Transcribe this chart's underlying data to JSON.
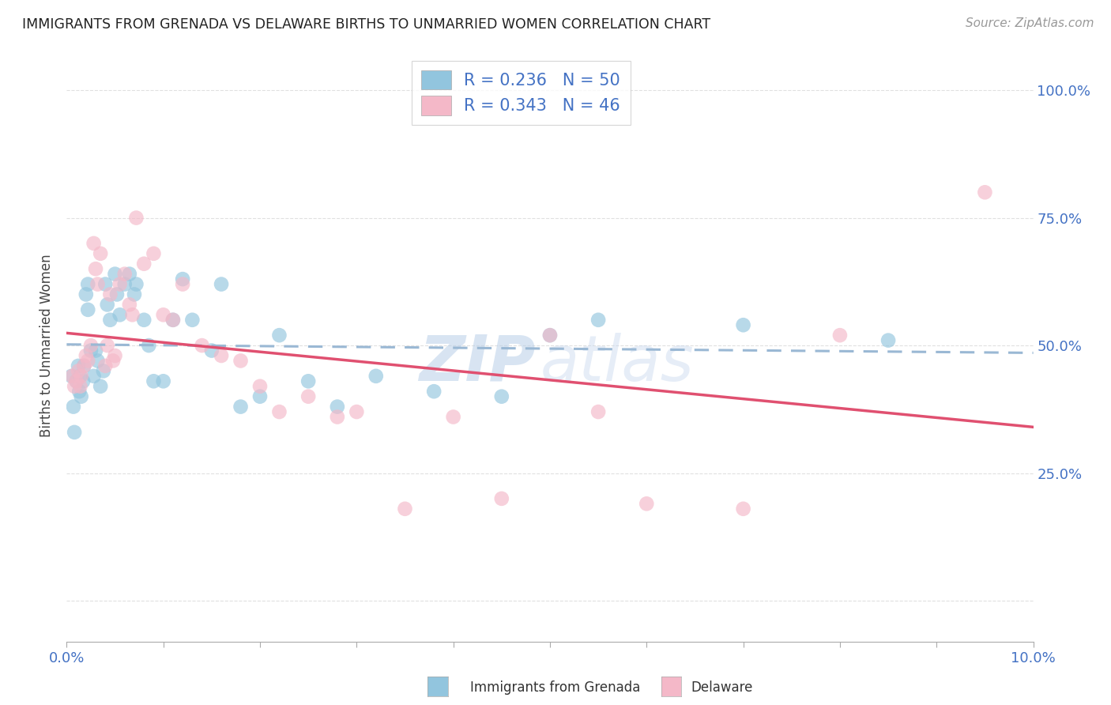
{
  "title": "IMMIGRANTS FROM GRENADA VS DELAWARE BIRTHS TO UNMARRIED WOMEN CORRELATION CHART",
  "source": "Source: ZipAtlas.com",
  "ylabel": "Births to Unmarried Women",
  "xlim": [
    0.0,
    10.0
  ],
  "ylim": [
    -8.0,
    108.0
  ],
  "yticks": [
    0,
    25,
    50,
    75,
    100
  ],
  "ytick_labels": [
    "",
    "25.0%",
    "50.0%",
    "75.0%",
    "100.0%"
  ],
  "xtick_labels_shown": [
    "0.0%",
    "10.0%"
  ],
  "legend_label1": "Immigrants from Grenada",
  "legend_label2": "Delaware",
  "color_blue": "#92c5de",
  "color_pink": "#f4b8c8",
  "color_blue_line": "#4472c4",
  "color_pink_line": "#e05070",
  "color_blue_dashed": "#b0c8e0",
  "title_color": "#222222",
  "source_color": "#999999",
  "axis_color": "#4472c4",
  "grid_color": "#e0e0e0",
  "blue_scatter_x": [
    0.05,
    0.07,
    0.08,
    0.1,
    0.12,
    0.13,
    0.14,
    0.15,
    0.17,
    0.18,
    0.2,
    0.22,
    0.22,
    0.25,
    0.28,
    0.3,
    0.32,
    0.35,
    0.38,
    0.4,
    0.42,
    0.45,
    0.5,
    0.52,
    0.55,
    0.6,
    0.65,
    0.7,
    0.72,
    0.8,
    0.85,
    0.9,
    1.0,
    1.1,
    1.2,
    1.3,
    1.5,
    1.6,
    1.8,
    2.0,
    2.2,
    2.5,
    2.8,
    3.2,
    3.8,
    4.5,
    5.0,
    5.5,
    7.0,
    8.5
  ],
  "blue_scatter_y": [
    44,
    38,
    33,
    43,
    46,
    41,
    44,
    40,
    43,
    46,
    60,
    62,
    57,
    49,
    44,
    49,
    47,
    42,
    45,
    62,
    58,
    55,
    64,
    60,
    56,
    62,
    64,
    60,
    62,
    55,
    50,
    43,
    43,
    55,
    63,
    55,
    49,
    62,
    38,
    40,
    52,
    43,
    38,
    44,
    41,
    40,
    52,
    55,
    54,
    51
  ],
  "pink_scatter_x": [
    0.06,
    0.08,
    0.1,
    0.12,
    0.14,
    0.15,
    0.18,
    0.2,
    0.22,
    0.25,
    0.28,
    0.3,
    0.32,
    0.35,
    0.4,
    0.42,
    0.45,
    0.48,
    0.5,
    0.55,
    0.6,
    0.65,
    0.68,
    0.72,
    0.8,
    0.9,
    1.0,
    1.1,
    1.2,
    1.4,
    1.6,
    1.8,
    2.0,
    2.2,
    2.5,
    2.8,
    3.0,
    3.5,
    4.0,
    4.5,
    5.0,
    5.5,
    6.0,
    7.0,
    8.0,
    9.5
  ],
  "pink_scatter_y": [
    44,
    42,
    43,
    45,
    42,
    44,
    46,
    48,
    47,
    50,
    70,
    65,
    62,
    68,
    46,
    50,
    60,
    47,
    48,
    62,
    64,
    58,
    56,
    75,
    66,
    68,
    56,
    55,
    62,
    50,
    48,
    47,
    42,
    37,
    40,
    36,
    37,
    18,
    36,
    20,
    52,
    37,
    19,
    18,
    52,
    80
  ],
  "watermark_zip": "ZIP",
  "watermark_atlas": "atlas"
}
